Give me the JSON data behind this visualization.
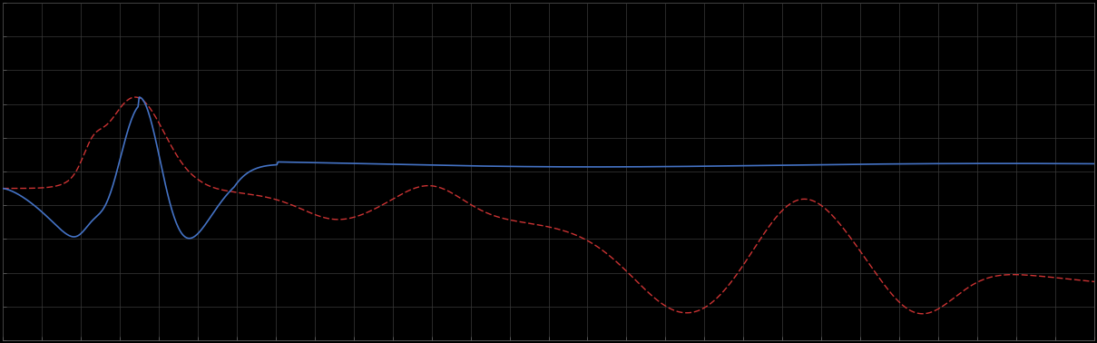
{
  "background_color": "#000000",
  "plot_background": "#000000",
  "blue_line_color": "#4472c4",
  "red_line_color": "#cc3333",
  "figsize": [
    12.09,
    3.78
  ],
  "dpi": 100,
  "xlim": [
    0,
    28
  ],
  "ylim": [
    0,
    10
  ],
  "x_major_ticks": 28,
  "y_major_ticks": 10,
  "grid_color": "#3a3a3a"
}
